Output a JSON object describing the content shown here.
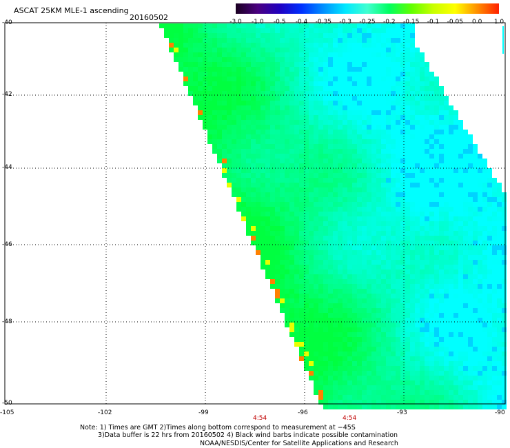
{
  "header": {
    "title": "ASCAT 25KM MLE-1 ascending",
    "date": "20160502"
  },
  "colorbar": {
    "tick_labels": [
      "-3.0",
      "-1.0",
      "-0.5",
      "-0.4",
      "-0.35",
      "-0.3",
      "-0.25",
      "-0.2",
      "-0.15",
      "-0.1",
      "-0.05",
      "0.0",
      "1.0"
    ],
    "colors": [
      "#1a0020",
      "#4a0080",
      "#2000c0",
      "#0030ff",
      "#0090ff",
      "#00e8ff",
      "#40ffd0",
      "#00ff60",
      "#60ff00",
      "#c8ff00",
      "#ffff00",
      "#ff9000",
      "#ff2000"
    ]
  },
  "map": {
    "lat_labels": [
      "-40",
      "-42",
      "-44",
      "-46",
      "-48",
      "-50"
    ],
    "lon_labels": [
      "-105",
      "-102",
      "-99",
      "-96",
      "-93",
      "-90"
    ],
    "time_labels": [
      "4:54",
      "4:54"
    ],
    "field_colors": {
      "cyan": "#00ffff",
      "green": "#00ff40",
      "light_green": "#40ff80",
      "blue": "#0080ff",
      "yellow": "#e8ff00",
      "orange": "#ff8000"
    }
  },
  "notes": {
    "line1": "Note: 1) Times are GMT 2)Times along bottom correspond to measurement at −45S",
    "line2": "3)Data buffer is 22 hrs from 20160502 4) Black wind barbs indicate possible contamination",
    "line3": "NOAA/NESDIS/Center for Satellite Applications and Research"
  }
}
